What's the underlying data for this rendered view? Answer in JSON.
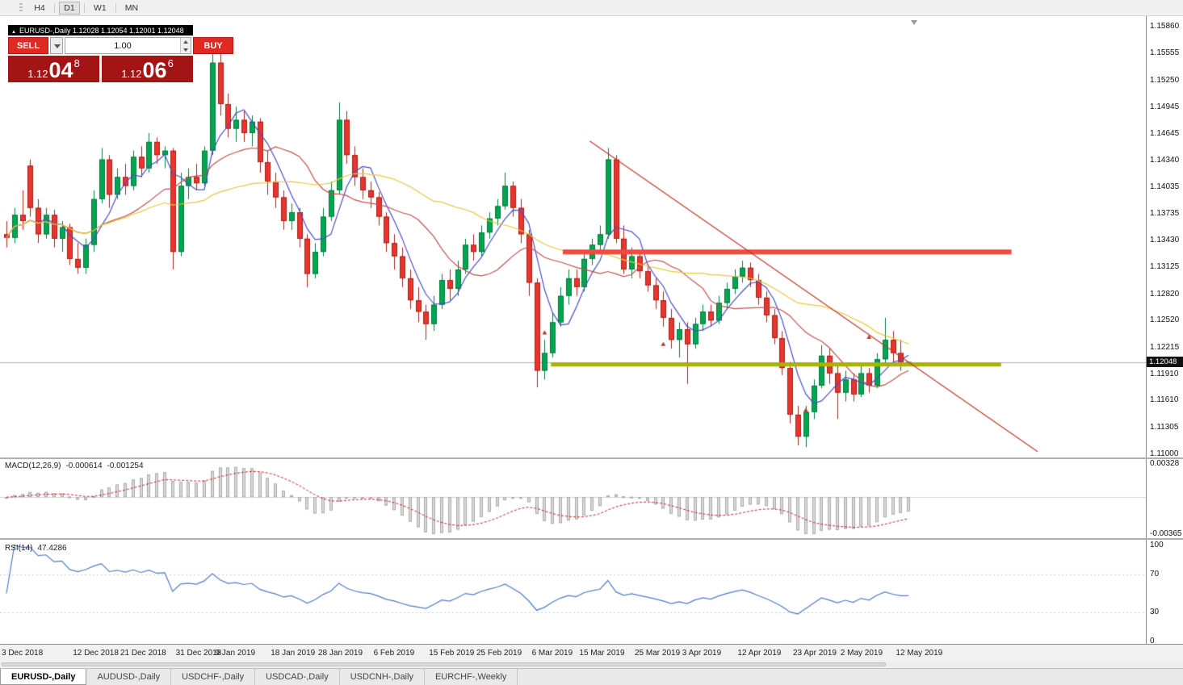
{
  "toolbar": {
    "timeframes": [
      "H4",
      "D1",
      "W1",
      "MN"
    ],
    "active": "D1"
  },
  "symbol_header": {
    "text": "EURUSD-,Daily  1.12028 1.12054 1.12001 1.12048"
  },
  "trade_panel": {
    "sell_label": "SELL",
    "buy_label": "BUY",
    "volume": "1.00",
    "sell_price": {
      "base": "1.12",
      "big": "04",
      "sup": "8"
    },
    "buy_price": {
      "base": "1.12",
      "big": "06",
      "sup": "6"
    }
  },
  "price_axis": {
    "labels": [
      "1.15860",
      "1.15555",
      "1.15250",
      "1.14945",
      "1.14645",
      "1.14340",
      "1.14035",
      "1.13735",
      "1.13430",
      "1.13125",
      "1.12820",
      "1.12520",
      "1.12215",
      "1.11910",
      "1.11610",
      "1.11305",
      "1.11000"
    ],
    "current": "1.12048"
  },
  "chart_data": {
    "type": "candlestick",
    "symbol": "EURUSD-",
    "timeframe": "Daily",
    "price_range": {
      "top": 1.1586,
      "bottom": 1.11
    },
    "bid_line": 1.12048,
    "date_ticks": [
      {
        "label": "3 Dec 2018",
        "idx": 0
      },
      {
        "label": "12 Dec 2018",
        "idx": 9
      },
      {
        "label": "21 Dec 2018",
        "idx": 15
      },
      {
        "label": "31 Dec 2018",
        "idx": 22
      },
      {
        "label": "9 Jan 2019",
        "idx": 27
      },
      {
        "label": "18 Jan 2019",
        "idx": 34
      },
      {
        "label": "28 Jan 2019",
        "idx": 40
      },
      {
        "label": "6 Feb 2019",
        "idx": 47
      },
      {
        "label": "15 Feb 2019",
        "idx": 54
      },
      {
        "label": "25 Feb 2019",
        "idx": 60
      },
      {
        "label": "6 Mar 2019",
        "idx": 67
      },
      {
        "label": "15 Mar 2019",
        "idx": 73
      },
      {
        "label": "25 Mar 2019",
        "idx": 80
      },
      {
        "label": "3 Apr 2019",
        "idx": 86
      },
      {
        "label": "12 Apr 2019",
        "idx": 93
      },
      {
        "label": "23 Apr 2019",
        "idx": 100
      },
      {
        "label": "2 May 2019",
        "idx": 106
      },
      {
        "label": "12 May 2019",
        "idx": 113
      }
    ],
    "moving_averages": [
      {
        "period": 5,
        "color": "#4850c8"
      },
      {
        "period": 13,
        "color": "#c0504d"
      },
      {
        "period": 34,
        "color": "#e8c73e"
      }
    ],
    "objects": {
      "resistance": {
        "price": 1.133,
        "x1_idx": 70.3,
        "x2_idx": 127,
        "width": 6,
        "color": "#ef4b3e"
      },
      "support": {
        "price": 1.1202,
        "x1_idx": 68.8,
        "x2_idx": 125.7,
        "width": 5,
        "color": "#aab400"
      },
      "trendline": {
        "p1": {
          "idx": 73.7,
          "price": 1.1456
        },
        "p2": {
          "idx": 130.3,
          "price": 1.1103
        },
        "width": 1.2,
        "color": "#c0392b"
      }
    },
    "markers": [
      {
        "idx": 68,
        "price": 1.1238
      },
      {
        "idx": 83,
        "price": 1.1225
      },
      {
        "idx": 101,
        "price": 1.115
      },
      {
        "idx": 109,
        "price": 1.1233
      }
    ],
    "ohlc": [
      [
        1.135,
        1.1365,
        1.1335,
        1.1346
      ],
      [
        1.1346,
        1.138,
        1.134,
        1.1372
      ],
      [
        1.1372,
        1.14,
        1.1355,
        1.1365
      ],
      [
        1.1428,
        1.1435,
        1.137,
        1.138
      ],
      [
        1.138,
        1.139,
        1.134,
        1.135
      ],
      [
        1.135,
        1.138,
        1.1345,
        1.1372
      ],
      [
        1.1372,
        1.1378,
        1.1335,
        1.1345
      ],
      [
        1.1345,
        1.1365,
        1.133,
        1.1358
      ],
      [
        1.1358,
        1.1362,
        1.1315,
        1.1322
      ],
      [
        1.1322,
        1.134,
        1.1305,
        1.1312
      ],
      [
        1.1312,
        1.1345,
        1.1305,
        1.1338
      ],
      [
        1.1338,
        1.14,
        1.133,
        1.139
      ],
      [
        1.139,
        1.1448,
        1.1385,
        1.1435
      ],
      [
        1.1435,
        1.144,
        1.138,
        1.1395
      ],
      [
        1.1395,
        1.1425,
        1.139,
        1.1415
      ],
      [
        1.1415,
        1.143,
        1.1395,
        1.1405
      ],
      [
        1.1405,
        1.1445,
        1.14,
        1.1438
      ],
      [
        1.1438,
        1.145,
        1.1415,
        1.1425
      ],
      [
        1.1425,
        1.1465,
        1.142,
        1.1455
      ],
      [
        1.1455,
        1.146,
        1.143,
        1.144
      ],
      [
        1.144,
        1.145,
        1.1425,
        1.1445
      ],
      [
        1.1445,
        1.1448,
        1.131,
        1.133
      ],
      [
        1.133,
        1.142,
        1.1325,
        1.1405
      ],
      [
        1.1405,
        1.1425,
        1.139,
        1.1415
      ],
      [
        1.1415,
        1.143,
        1.14,
        1.1408
      ],
      [
        1.1408,
        1.145,
        1.1405,
        1.1445
      ],
      [
        1.1445,
        1.157,
        1.144,
        1.1545
      ],
      [
        1.1545,
        1.1558,
        1.1485,
        1.1498
      ],
      [
        1.1498,
        1.151,
        1.146,
        1.147
      ],
      [
        1.147,
        1.1495,
        1.1455,
        1.148
      ],
      [
        1.148,
        1.149,
        1.1455,
        1.1465
      ],
      [
        1.1465,
        1.1485,
        1.145,
        1.1478
      ],
      [
        1.1478,
        1.1482,
        1.142,
        1.1432
      ],
      [
        1.1432,
        1.1445,
        1.1395,
        1.141
      ],
      [
        1.141,
        1.142,
        1.138,
        1.1392
      ],
      [
        1.1392,
        1.14,
        1.1355,
        1.1365
      ],
      [
        1.1365,
        1.1385,
        1.1355,
        1.1375
      ],
      [
        1.1375,
        1.138,
        1.1335,
        1.1345
      ],
      [
        1.1345,
        1.135,
        1.129,
        1.1305
      ],
      [
        1.1305,
        1.134,
        1.13,
        1.133
      ],
      [
        1.133,
        1.138,
        1.1325,
        1.137
      ],
      [
        1.137,
        1.141,
        1.1365,
        1.14
      ],
      [
        1.14,
        1.15,
        1.1395,
        1.148
      ],
      [
        1.148,
        1.149,
        1.143,
        1.144
      ],
      [
        1.144,
        1.145,
        1.1405,
        1.1415
      ],
      [
        1.1415,
        1.1425,
        1.139,
        1.14
      ],
      [
        1.14,
        1.141,
        1.138,
        1.1392
      ],
      [
        1.1392,
        1.1398,
        1.136,
        1.137
      ],
      [
        1.137,
        1.1375,
        1.133,
        1.134
      ],
      [
        1.134,
        1.135,
        1.131,
        1.1325
      ],
      [
        1.1325,
        1.1335,
        1.129,
        1.13
      ],
      [
        1.13,
        1.131,
        1.1265,
        1.1275
      ],
      [
        1.1275,
        1.129,
        1.125,
        1.1262
      ],
      [
        1.1262,
        1.127,
        1.123,
        1.1248
      ],
      [
        1.1248,
        1.128,
        1.124,
        1.127
      ],
      [
        1.127,
        1.1305,
        1.1265,
        1.1298
      ],
      [
        1.1298,
        1.131,
        1.1275,
        1.1288
      ],
      [
        1.1288,
        1.132,
        1.128,
        1.131
      ],
      [
        1.131,
        1.1345,
        1.1305,
        1.1338
      ],
      [
        1.1338,
        1.135,
        1.132,
        1.133
      ],
      [
        1.133,
        1.136,
        1.1325,
        1.1352
      ],
      [
        1.1352,
        1.1375,
        1.1345,
        1.1368
      ],
      [
        1.1368,
        1.139,
        1.136,
        1.1382
      ],
      [
        1.1382,
        1.142,
        1.1378,
        1.1405
      ],
      [
        1.1405,
        1.141,
        1.137,
        1.138
      ],
      [
        1.138,
        1.139,
        1.134,
        1.135
      ],
      [
        1.135,
        1.1355,
        1.128,
        1.1295
      ],
      [
        1.1295,
        1.13,
        1.1176,
        1.1195
      ],
      [
        1.1195,
        1.123,
        1.1185,
        1.1215
      ],
      [
        1.1215,
        1.126,
        1.121,
        1.125
      ],
      [
        1.125,
        1.129,
        1.1245,
        1.128
      ],
      [
        1.128,
        1.131,
        1.127,
        1.13
      ],
      [
        1.13,
        1.131,
        1.128,
        1.129
      ],
      [
        1.129,
        1.133,
        1.1285,
        1.1322
      ],
      [
        1.1322,
        1.1345,
        1.1315,
        1.1338
      ],
      [
        1.1338,
        1.136,
        1.133,
        1.135
      ],
      [
        1.135,
        1.1448,
        1.1345,
        1.1435
      ],
      [
        1.1435,
        1.144,
        1.134,
        1.1345
      ],
      [
        1.1345,
        1.136,
        1.1305,
        1.131
      ],
      [
        1.131,
        1.1335,
        1.13,
        1.1325
      ],
      [
        1.1325,
        1.133,
        1.13,
        1.1308
      ],
      [
        1.1308,
        1.1315,
        1.1285,
        1.1292
      ],
      [
        1.1292,
        1.13,
        1.1265,
        1.1275
      ],
      [
        1.1275,
        1.1285,
        1.1245,
        1.1255
      ],
      [
        1.1255,
        1.1265,
        1.122,
        1.123
      ],
      [
        1.123,
        1.125,
        1.121,
        1.1242
      ],
      [
        1.1242,
        1.125,
        1.118,
        1.1225
      ],
      [
        1.1225,
        1.1255,
        1.122,
        1.1248
      ],
      [
        1.1248,
        1.127,
        1.124,
        1.1262
      ],
      [
        1.1262,
        1.127,
        1.1245,
        1.1252
      ],
      [
        1.1252,
        1.128,
        1.1248,
        1.1272
      ],
      [
        1.1272,
        1.1295,
        1.1265,
        1.1288
      ],
      [
        1.1288,
        1.131,
        1.1282,
        1.1302
      ],
      [
        1.1302,
        1.132,
        1.1295,
        1.1312
      ],
      [
        1.1312,
        1.1318,
        1.129,
        1.1298
      ],
      [
        1.1298,
        1.1305,
        1.127,
        1.1278
      ],
      [
        1.1278,
        1.1285,
        1.125,
        1.1258
      ],
      [
        1.1258,
        1.1265,
        1.1225,
        1.1232
      ],
      [
        1.1232,
        1.124,
        1.119,
        1.1198
      ],
      [
        1.1198,
        1.1205,
        1.1135,
        1.1145
      ],
      [
        1.1145,
        1.1155,
        1.111,
        1.112
      ],
      [
        1.112,
        1.1155,
        1.1108,
        1.1148
      ],
      [
        1.1148,
        1.1185,
        1.114,
        1.1178
      ],
      [
        1.1178,
        1.1224,
        1.1175,
        1.1212
      ],
      [
        1.1212,
        1.122,
        1.118,
        1.1192
      ],
      [
        1.1192,
        1.12,
        1.114,
        1.117
      ],
      [
        1.117,
        1.1195,
        1.116,
        1.1185
      ],
      [
        1.1185,
        1.1192,
        1.116,
        1.1168
      ],
      [
        1.1168,
        1.12,
        1.1165,
        1.1192
      ],
      [
        1.1192,
        1.1198,
        1.117,
        1.1178
      ],
      [
        1.1178,
        1.1215,
        1.1175,
        1.1208
      ],
      [
        1.1208,
        1.1255,
        1.12,
        1.123
      ],
      [
        1.123,
        1.124,
        1.1205,
        1.1215
      ],
      [
        1.1215,
        1.123,
        1.1195,
        1.12048
      ],
      [
        1.12028,
        1.12054,
        1.12001,
        1.12048
      ]
    ]
  },
  "macd": {
    "label": "MACD(12,26,9)",
    "value_main": "-0.000614",
    "value_signal": "-0.001254",
    "axis_labels": [
      "0.00328",
      "-0.00365"
    ],
    "range": {
      "max": 0.00328,
      "min": -0.00365
    },
    "fast": 12,
    "slow": 26,
    "signal": 9
  },
  "rsi": {
    "label": "RSI(14)",
    "value": "47.4286",
    "axis_labels": [
      "100",
      "70",
      "30",
      "0"
    ],
    "levels": [
      70,
      30
    ],
    "period": 14
  },
  "tabs": [
    {
      "label": "EURUSD-,Daily",
      "active": true
    },
    {
      "label": "AUDUSD-,Daily",
      "active": false
    },
    {
      "label": "USDCHF-,Daily",
      "active": false
    },
    {
      "label": "USDCAD-,Daily",
      "active": false
    },
    {
      "label": "USDCNH-,Daily",
      "active": false
    },
    {
      "label": "EURCHF-,Weekly",
      "active": false
    }
  ],
  "colors": {
    "bull": "#00a651",
    "bull_border": "#007a3c",
    "bear": "#e8352e",
    "bear_border": "#aa1f18",
    "macd_hist_fill": "#d9d9d9",
    "macd_hist_border": "#ababab",
    "macd_signal": "#cc2222",
    "rsi_line": "#4d7cc7",
    "bid_line": "#b0b0b0",
    "marker": "#b23a2e",
    "sell_buy_button": "#e02a21",
    "price_tile": "#a31414"
  }
}
